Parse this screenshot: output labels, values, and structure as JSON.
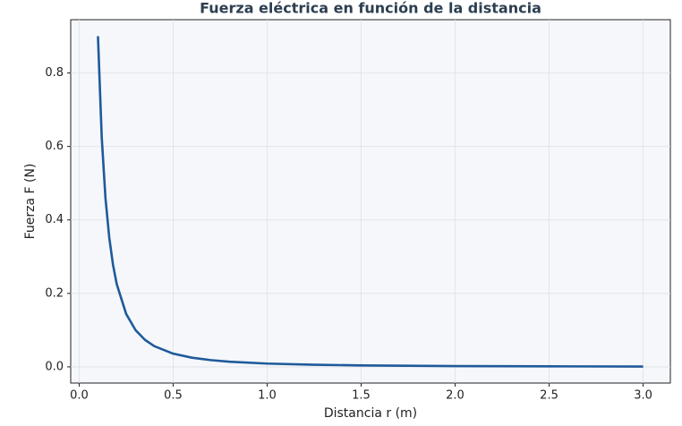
{
  "chart_data": {
    "type": "line",
    "title": "Fuerza eléctrica en función de la distancia",
    "xlabel": "Distancia r (m)",
    "ylabel": "Fuerza F (N)",
    "x": [
      0.1,
      0.12,
      0.14,
      0.16,
      0.18,
      0.2,
      0.25,
      0.3,
      0.35,
      0.4,
      0.5,
      0.6,
      0.7,
      0.8,
      1.0,
      1.25,
      1.5,
      2.0,
      2.5,
      3.0
    ],
    "series": [
      {
        "name": "F",
        "color": "#1f5a9a",
        "values": [
          0.9,
          0.625,
          0.459,
          0.352,
          0.278,
          0.225,
          0.144,
          0.1,
          0.0735,
          0.0563,
          0.036,
          0.025,
          0.0184,
          0.0141,
          0.009,
          0.00576,
          0.004,
          0.00225,
          0.00144,
          0.001
        ]
      }
    ],
    "xlim": [
      -0.045,
      3.145
    ],
    "xticks": [
      {
        "value": 0,
        "label": "0.0"
      },
      {
        "value": 0.5,
        "label": "0.5"
      },
      {
        "value": 1,
        "label": "1.0"
      },
      {
        "value": 1.5,
        "label": "1.5"
      },
      {
        "value": 2,
        "label": "2.0"
      },
      {
        "value": 2.5,
        "label": "2.5"
      },
      {
        "value": 3,
        "label": "3.0"
      }
    ],
    "ylim": [
      -0.044,
      0.945
    ],
    "yticks": [
      {
        "value": 0,
        "label": "0.0"
      },
      {
        "value": 0.2,
        "label": "0.2"
      },
      {
        "value": 0.4,
        "label": "0.4"
      },
      {
        "value": 0.6,
        "label": "0.6"
      },
      {
        "value": 0.8,
        "label": "0.8"
      }
    ],
    "grid": true
  }
}
